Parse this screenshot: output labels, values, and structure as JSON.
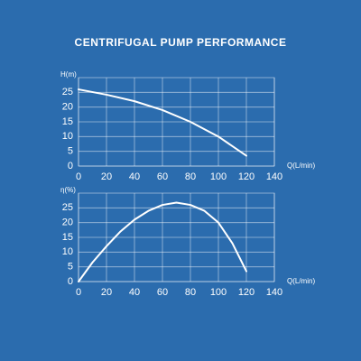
{
  "title": "CENTRIFUGAL PUMP PERFORMANCE",
  "chart_data": [
    {
      "type": "line",
      "ylabel": "H(m)",
      "xlabel": "Q(L/min)",
      "color": "#ffffff",
      "grid": true,
      "x": [
        0,
        20,
        40,
        60,
        80,
        100,
        120
      ],
      "values": [
        26,
        24.2,
        22,
        19,
        15,
        10,
        3.5
      ],
      "xlim": [
        0,
        140
      ],
      "xticks": [
        0,
        20,
        40,
        60,
        80,
        100,
        120,
        140
      ],
      "ylim": [
        0,
        30
      ],
      "yticks": [
        0,
        5,
        10,
        15,
        20,
        25
      ]
    },
    {
      "type": "line",
      "ylabel": "η(%)",
      "xlabel": "Q(L/min)",
      "color": "#ffffff",
      "grid": true,
      "x": [
        0,
        10,
        20,
        30,
        40,
        50,
        60,
        70,
        80,
        90,
        100,
        110,
        120
      ],
      "values": [
        0,
        6.5,
        12,
        17,
        21,
        24,
        26,
        26.8,
        26,
        24,
        20,
        13,
        3.5
      ],
      "xlim": [
        0,
        140
      ],
      "xticks": [
        0,
        20,
        40,
        60,
        80,
        100,
        120,
        140
      ],
      "ylim": [
        0,
        30
      ],
      "yticks": [
        0,
        5,
        10,
        15,
        20,
        25
      ]
    }
  ]
}
